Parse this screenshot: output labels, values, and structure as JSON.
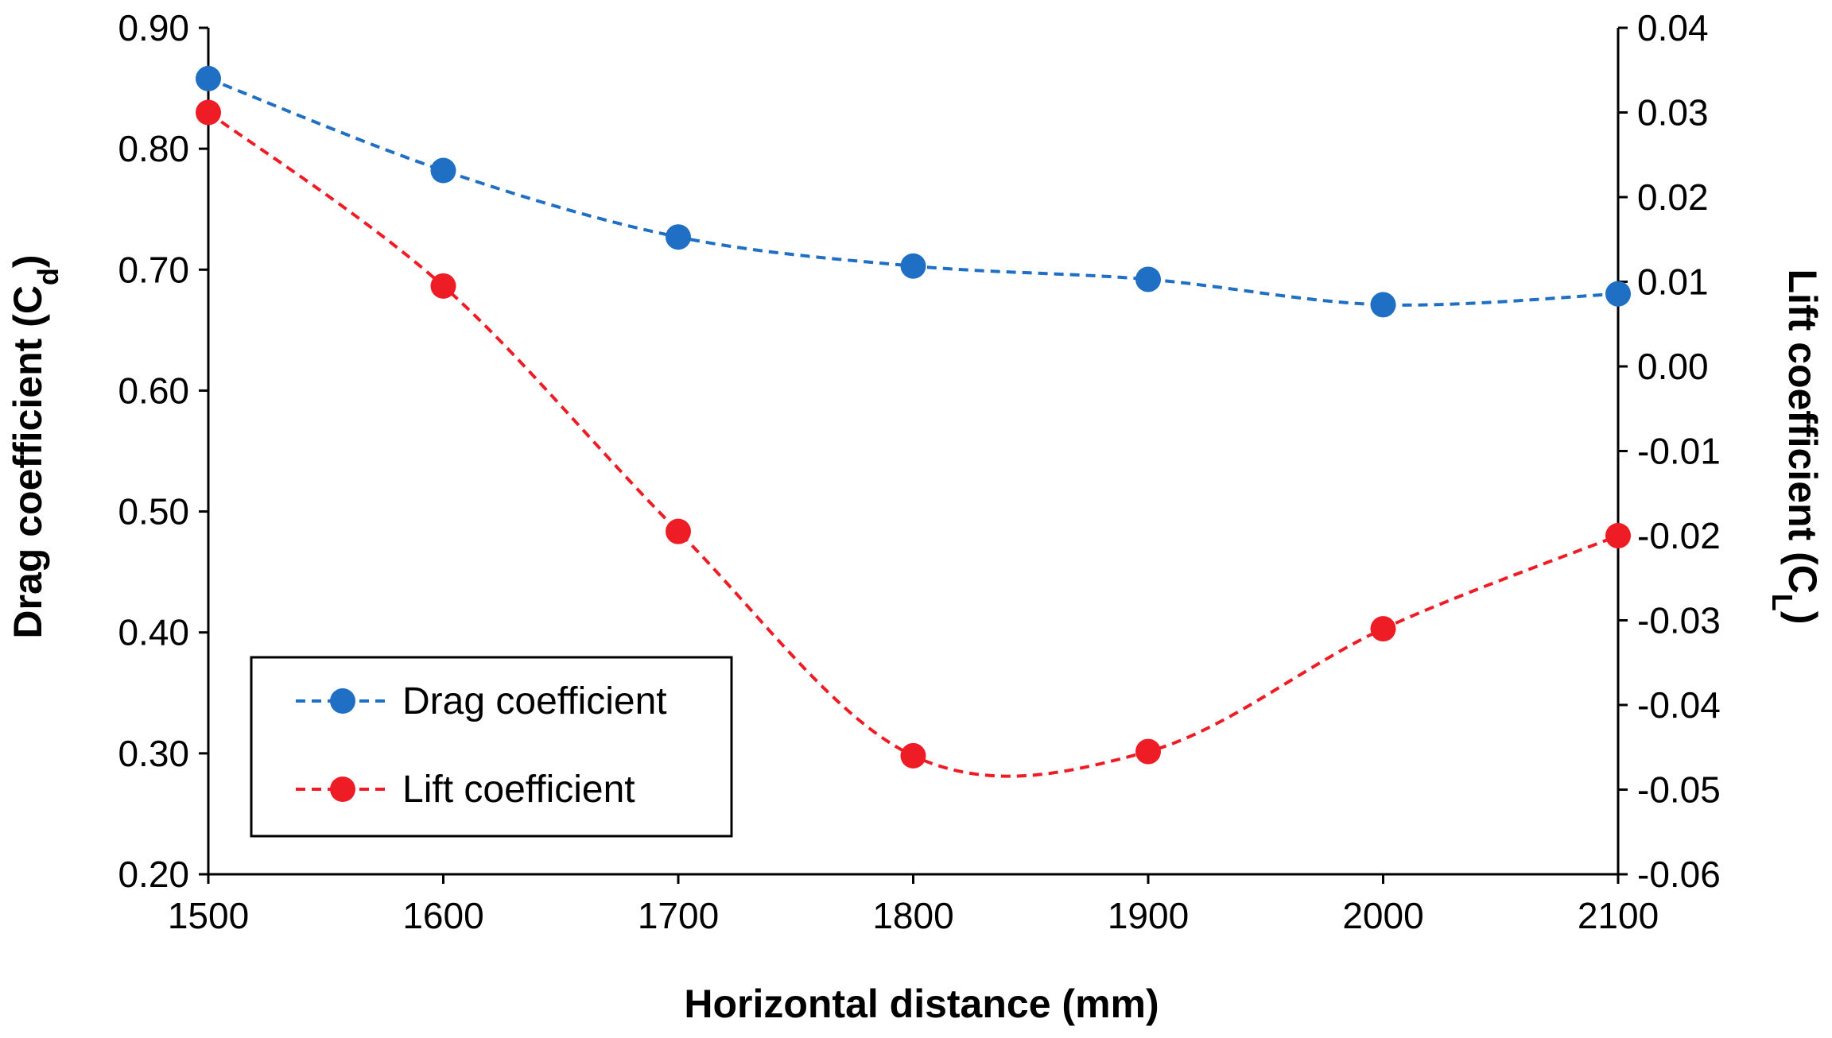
{
  "chart_data": {
    "type": "line",
    "title": "",
    "xlabel": "Horizontal distance (mm)",
    "ylabel": {
      "text": "Drag coefficient (C",
      "sub": "d",
      "close": ")"
    },
    "y2label": {
      "text": "Lift coefficient (C",
      "sub": "L",
      "close": ")"
    },
    "x": [
      1500,
      1600,
      1700,
      1800,
      1900,
      2000,
      2100
    ],
    "xlim": [
      1500,
      2100
    ],
    "ylim": [
      0.2,
      0.9
    ],
    "y2lim": [
      -0.06,
      0.04
    ],
    "xticks": [
      "1500",
      "1600",
      "1700",
      "1800",
      "1900",
      "2000",
      "2100"
    ],
    "yticks": [
      "0.20",
      "0.30",
      "0.40",
      "0.50",
      "0.60",
      "0.70",
      "0.80",
      "0.90"
    ],
    "y2ticks": [
      "-0.06",
      "-0.05",
      "-0.04",
      "-0.03",
      "-0.02",
      "-0.01",
      "0.00",
      "0.01",
      "0.02",
      "0.03",
      "0.04"
    ],
    "grid": false,
    "legend_position": "bottom-left",
    "series": [
      {
        "name": "Drag coefficient",
        "axis": "left",
        "color": "#1f6fc4",
        "line_style": "dashed",
        "values": [
          0.858,
          0.782,
          0.727,
          0.703,
          0.692,
          0.671,
          0.68
        ]
      },
      {
        "name": "Lift coefficient",
        "axis": "right",
        "color": "#ee1c24",
        "line_style": "dashed",
        "values": [
          0.03,
          0.0095,
          -0.0195,
          -0.046,
          -0.0455,
          -0.031,
          -0.02
        ]
      }
    ]
  }
}
